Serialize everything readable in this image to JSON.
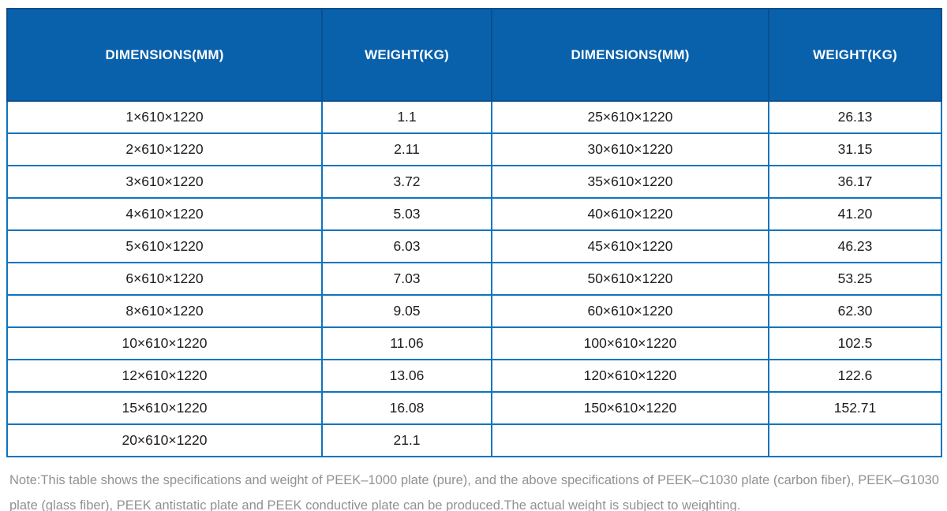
{
  "table": {
    "headers": [
      "DIMENSIONS(MM)",
      "WEIGHT(KG)",
      "DIMENSIONS(MM)",
      "WEIGHT(KG)"
    ],
    "rows": [
      [
        "1×610×1220",
        "1.1",
        "25×610×1220",
        "26.13"
      ],
      [
        "2×610×1220",
        "2.11",
        "30×610×1220",
        "31.15"
      ],
      [
        "3×610×1220",
        "3.72",
        "35×610×1220",
        "36.17"
      ],
      [
        "4×610×1220",
        "5.03",
        "40×610×1220",
        "41.20"
      ],
      [
        "5×610×1220",
        "6.03",
        "45×610×1220",
        "46.23"
      ],
      [
        "6×610×1220",
        "7.03",
        "50×610×1220",
        "53.25"
      ],
      [
        "8×610×1220",
        "9.05",
        "60×610×1220",
        "62.30"
      ],
      [
        "10×610×1220",
        "11.06",
        "100×610×1220",
        "102.5"
      ],
      [
        "12×610×1220",
        "13.06",
        "120×610×1220",
        "122.6"
      ],
      [
        "15×610×1220",
        "16.08",
        "150×610×1220",
        "152.71"
      ],
      [
        "20×610×1220",
        "21.1",
        "",
        ""
      ]
    ]
  },
  "note": "Note:This table shows the specifications and weight of PEEK–1000 plate (pure), and the above specifications of PEEK–C1030 plate (carbon fiber), PEEK–G1030 plate (glass fiber), PEEK antistatic plate and PEEK conductive plate can be produced.The actual weight is subject to weighting.",
  "colors": {
    "header_bg": "#0A61AB",
    "header_border": "#0B4F8E",
    "body_border": "#0E74BF",
    "body_text": "#1D1D1D",
    "note_text": "#8F9193"
  }
}
